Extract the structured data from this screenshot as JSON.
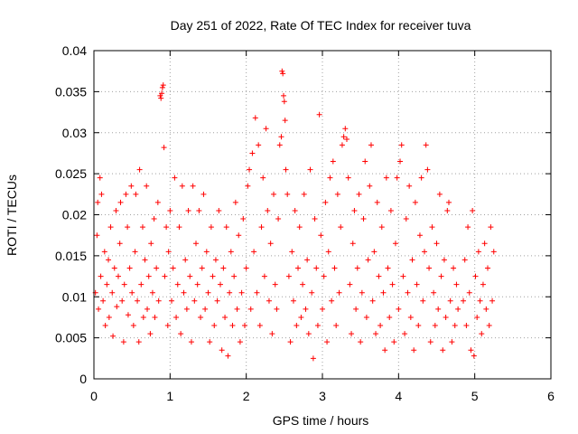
{
  "chart_data": {
    "type": "scatter",
    "title": "Day 251 of 2022, Rate Of TEC Index for receiver tuva",
    "xlabel": "GPS time / hours",
    "ylabel": "ROTI / TECUs",
    "xlim": [
      0,
      6
    ],
    "ylim": [
      0,
      0.04
    ],
    "xticks": [
      "0",
      "1",
      "2",
      "3",
      "4",
      "5",
      "6"
    ],
    "yticks": [
      "0",
      "0.005",
      "0.01",
      "0.015",
      "0.02",
      "0.025",
      "0.03",
      "0.035",
      "0.04"
    ],
    "grid": true,
    "marker": "+",
    "color": "#ff0000",
    "series": [
      {
        "points": [
          [
            0.02,
            0.0105
          ],
          [
            0.04,
            0.0175
          ],
          [
            0.05,
            0.0215
          ],
          [
            0.06,
            0.0085
          ],
          [
            0.08,
            0.0245
          ],
          [
            0.09,
            0.0125
          ],
          [
            0.1,
            0.0225
          ],
          [
            0.12,
            0.0095
          ],
          [
            0.14,
            0.0155
          ],
          [
            0.15,
            0.0065
          ],
          [
            0.17,
            0.0115
          ],
          [
            0.19,
            0.0145
          ],
          [
            0.2,
            0.0075
          ],
          [
            0.22,
            0.0185
          ],
          [
            0.24,
            0.0105
          ],
          [
            0.25,
            0.0052
          ],
          [
            0.27,
            0.0135
          ],
          [
            0.29,
            0.0205
          ],
          [
            0.3,
            0.0088
          ],
          [
            0.32,
            0.0125
          ],
          [
            0.34,
            0.0165
          ],
          [
            0.35,
            0.0215
          ],
          [
            0.37,
            0.0095
          ],
          [
            0.39,
            0.0045
          ],
          [
            0.4,
            0.0115
          ],
          [
            0.42,
            0.0225
          ],
          [
            0.44,
            0.0185
          ],
          [
            0.45,
            0.0078
          ],
          [
            0.47,
            0.0135
          ],
          [
            0.49,
            0.0235
          ],
          [
            0.5,
            0.0105
          ],
          [
            0.52,
            0.0065
          ],
          [
            0.54,
            0.0155
          ],
          [
            0.55,
            0.0225
          ],
          [
            0.57,
            0.0095
          ],
          [
            0.59,
            0.0045
          ],
          [
            0.6,
            0.0255
          ],
          [
            0.62,
            0.0115
          ],
          [
            0.64,
            0.0185
          ],
          [
            0.65,
            0.0075
          ],
          [
            0.67,
            0.0145
          ],
          [
            0.69,
            0.0235
          ],
          [
            0.7,
            0.0085
          ],
          [
            0.72,
            0.0125
          ],
          [
            0.74,
            0.0055
          ],
          [
            0.75,
            0.0165
          ],
          [
            0.77,
            0.0105
          ],
          [
            0.79,
            0.0195
          ],
          [
            0.8,
            0.0075
          ],
          [
            0.82,
            0.0135
          ],
          [
            0.84,
            0.0215
          ],
          [
            0.85,
            0.0095
          ],
          [
            0.87,
            0.0345
          ],
          [
            0.88,
            0.0342
          ],
          [
            0.89,
            0.0348
          ],
          [
            0.9,
            0.0355
          ],
          [
            0.91,
            0.0358
          ],
          [
            0.92,
            0.0282
          ],
          [
            0.93,
            0.0125
          ],
          [
            0.95,
            0.0185
          ],
          [
            0.97,
            0.0065
          ],
          [
            0.98,
            0.0155
          ],
          [
            1.0,
            0.0205
          ],
          [
            1.02,
            0.0095
          ],
          [
            1.04,
            0.0135
          ],
          [
            1.06,
            0.0245
          ],
          [
            1.08,
            0.0075
          ],
          [
            1.1,
            0.0115
          ],
          [
            1.12,
            0.0185
          ],
          [
            1.14,
            0.0055
          ],
          [
            1.16,
            0.0235
          ],
          [
            1.18,
            0.0105
          ],
          [
            1.2,
            0.0145
          ],
          [
            1.22,
            0.0085
          ],
          [
            1.24,
            0.0205
          ],
          [
            1.26,
            0.0125
          ],
          [
            1.28,
            0.0045
          ],
          [
            1.3,
            0.0235
          ],
          [
            1.32,
            0.0095
          ],
          [
            1.34,
            0.0165
          ],
          [
            1.36,
            0.0115
          ],
          [
            1.38,
            0.0205
          ],
          [
            1.4,
            0.0075
          ],
          [
            1.42,
            0.0135
          ],
          [
            1.44,
            0.0225
          ],
          [
            1.46,
            0.0085
          ],
          [
            1.48,
            0.0155
          ],
          [
            1.5,
            0.0105
          ],
          [
            1.52,
            0.0045
          ],
          [
            1.54,
            0.0185
          ],
          [
            1.56,
            0.0125
          ],
          [
            1.58,
            0.0065
          ],
          [
            1.6,
            0.0145
          ],
          [
            1.62,
            0.0095
          ],
          [
            1.64,
            0.0205
          ],
          [
            1.66,
            0.0115
          ],
          [
            1.68,
            0.0035
          ],
          [
            1.7,
            0.0135
          ],
          [
            1.72,
            0.0075
          ],
          [
            1.74,
            0.0185
          ],
          [
            1.76,
            0.0028
          ],
          [
            1.78,
            0.0105
          ],
          [
            1.8,
            0.0155
          ],
          [
            1.82,
            0.0065
          ],
          [
            1.84,
            0.0125
          ],
          [
            1.86,
            0.0215
          ],
          [
            1.88,
            0.0085
          ],
          [
            1.9,
            0.0175
          ],
          [
            1.92,
            0.0045
          ],
          [
            1.94,
            0.0105
          ],
          [
            1.96,
            0.0195
          ],
          [
            1.98,
            0.0065
          ],
          [
            2.0,
            0.0135
          ],
          [
            2.02,
            0.0235
          ],
          [
            2.04,
            0.0255
          ],
          [
            2.06,
            0.0085
          ],
          [
            2.08,
            0.0275
          ],
          [
            2.1,
            0.0155
          ],
          [
            2.12,
            0.0318
          ],
          [
            2.14,
            0.0105
          ],
          [
            2.16,
            0.0285
          ],
          [
            2.18,
            0.0065
          ],
          [
            2.2,
            0.0185
          ],
          [
            2.22,
            0.0245
          ],
          [
            2.24,
            0.0125
          ],
          [
            2.26,
            0.0305
          ],
          [
            2.28,
            0.0205
          ],
          [
            2.3,
            0.0095
          ],
          [
            2.32,
            0.0165
          ],
          [
            2.34,
            0.0055
          ],
          [
            2.36,
            0.0225
          ],
          [
            2.38,
            0.0115
          ],
          [
            2.4,
            0.0085
          ],
          [
            2.42,
            0.0195
          ],
          [
            2.44,
            0.0285
          ],
          [
            2.46,
            0.0295
          ],
          [
            2.47,
            0.0375
          ],
          [
            2.48,
            0.0372
          ],
          [
            2.49,
            0.0345
          ],
          [
            2.5,
            0.0338
          ],
          [
            2.51,
            0.0315
          ],
          [
            2.52,
            0.0255
          ],
          [
            2.54,
            0.0225
          ],
          [
            2.56,
            0.0125
          ],
          [
            2.58,
            0.0045
          ],
          [
            2.6,
            0.0155
          ],
          [
            2.62,
            0.0095
          ],
          [
            2.64,
            0.0205
          ],
          [
            2.66,
            0.0065
          ],
          [
            2.68,
            0.0135
          ],
          [
            2.7,
            0.0185
          ],
          [
            2.72,
            0.0075
          ],
          [
            2.74,
            0.0115
          ],
          [
            2.76,
            0.0225
          ],
          [
            2.78,
            0.0085
          ],
          [
            2.8,
            0.0145
          ],
          [
            2.82,
            0.0055
          ],
          [
            2.84,
            0.0255
          ],
          [
            2.86,
            0.0105
          ],
          [
            2.88,
            0.0025
          ],
          [
            2.9,
            0.0195
          ],
          [
            2.92,
            0.0135
          ],
          [
            2.94,
            0.0065
          ],
          [
            2.96,
            0.0322
          ],
          [
            2.98,
            0.0175
          ],
          [
            3.0,
            0.0085
          ],
          [
            3.02,
            0.0125
          ],
          [
            3.04,
            0.0215
          ],
          [
            3.06,
            0.0045
          ],
          [
            3.08,
            0.0155
          ],
          [
            3.1,
            0.0245
          ],
          [
            3.12,
            0.0095
          ],
          [
            3.14,
            0.0265
          ],
          [
            3.16,
            0.0135
          ],
          [
            3.18,
            0.0065
          ],
          [
            3.2,
            0.0225
          ],
          [
            3.22,
            0.0105
          ],
          [
            3.24,
            0.0185
          ],
          [
            3.26,
            0.0285
          ],
          [
            3.28,
            0.0295
          ],
          [
            3.3,
            0.0305
          ],
          [
            3.32,
            0.0292
          ],
          [
            3.34,
            0.0245
          ],
          [
            3.36,
            0.0115
          ],
          [
            3.38,
            0.0055
          ],
          [
            3.4,
            0.0165
          ],
          [
            3.42,
            0.0205
          ],
          [
            3.44,
            0.0085
          ],
          [
            3.46,
            0.0135
          ],
          [
            3.48,
            0.0225
          ],
          [
            3.5,
            0.0045
          ],
          [
            3.52,
            0.0105
          ],
          [
            3.54,
            0.0195
          ],
          [
            3.56,
            0.0265
          ],
          [
            3.58,
            0.0075
          ],
          [
            3.6,
            0.0145
          ],
          [
            3.62,
            0.0235
          ],
          [
            3.64,
            0.0285
          ],
          [
            3.66,
            0.0095
          ],
          [
            3.68,
            0.0155
          ],
          [
            3.7,
            0.0055
          ],
          [
            3.72,
            0.0215
          ],
          [
            3.74,
            0.0125
          ],
          [
            3.76,
            0.0065
          ],
          [
            3.78,
            0.0185
          ],
          [
            3.8,
            0.0105
          ],
          [
            3.82,
            0.0035
          ],
          [
            3.84,
            0.0245
          ],
          [
            3.86,
            0.0135
          ],
          [
            3.88,
            0.0075
          ],
          [
            3.9,
            0.0205
          ],
          [
            3.92,
            0.0115
          ],
          [
            3.94,
            0.0045
          ],
          [
            3.96,
            0.0165
          ],
          [
            3.98,
            0.0245
          ],
          [
            4.0,
            0.0085
          ],
          [
            4.02,
            0.0265
          ],
          [
            4.04,
            0.0285
          ],
          [
            4.06,
            0.0125
          ],
          [
            4.08,
            0.0055
          ],
          [
            4.1,
            0.0195
          ],
          [
            4.12,
            0.0105
          ],
          [
            4.14,
            0.0235
          ],
          [
            4.16,
            0.0075
          ],
          [
            4.18,
            0.0145
          ],
          [
            4.2,
            0.0035
          ],
          [
            4.22,
            0.0215
          ],
          [
            4.24,
            0.0115
          ],
          [
            4.26,
            0.0065
          ],
          [
            4.28,
            0.0175
          ],
          [
            4.3,
            0.0245
          ],
          [
            4.32,
            0.0095
          ],
          [
            4.34,
            0.0155
          ],
          [
            4.36,
            0.0285
          ],
          [
            4.38,
            0.0255
          ],
          [
            4.4,
            0.0135
          ],
          [
            4.42,
            0.0045
          ],
          [
            4.44,
            0.0185
          ],
          [
            4.46,
            0.0105
          ],
          [
            4.48,
            0.0065
          ],
          [
            4.5,
            0.0165
          ],
          [
            4.52,
            0.0085
          ],
          [
            4.54,
            0.0225
          ],
          [
            4.56,
            0.0125
          ],
          [
            4.58,
            0.0035
          ],
          [
            4.6,
            0.0145
          ],
          [
            4.62,
            0.0075
          ],
          [
            4.64,
            0.0205
          ],
          [
            4.66,
            0.0215
          ],
          [
            4.68,
            0.0095
          ],
          [
            4.7,
            0.0045
          ],
          [
            4.72,
            0.0135
          ],
          [
            4.74,
            0.0065
          ],
          [
            4.76,
            0.0115
          ],
          [
            4.78,
            0.0085
          ],
          [
            4.85,
            0.0095
          ],
          [
            4.87,
            0.0145
          ],
          [
            4.89,
            0.0065
          ],
          [
            4.91,
            0.0185
          ],
          [
            4.93,
            0.0105
          ],
          [
            4.95,
            0.0035
          ],
          [
            4.97,
            0.0205
          ],
          [
            4.99,
            0.0028
          ],
          [
            5.01,
            0.0125
          ],
          [
            5.03,
            0.0075
          ],
          [
            5.05,
            0.0155
          ],
          [
            5.07,
            0.0095
          ],
          [
            5.09,
            0.0055
          ],
          [
            5.11,
            0.0115
          ],
          [
            5.13,
            0.0165
          ],
          [
            5.15,
            0.0085
          ],
          [
            5.17,
            0.0135
          ],
          [
            5.19,
            0.0065
          ],
          [
            5.21,
            0.0185
          ],
          [
            5.23,
            0.0095
          ],
          [
            5.25,
            0.0155
          ]
        ]
      }
    ]
  }
}
